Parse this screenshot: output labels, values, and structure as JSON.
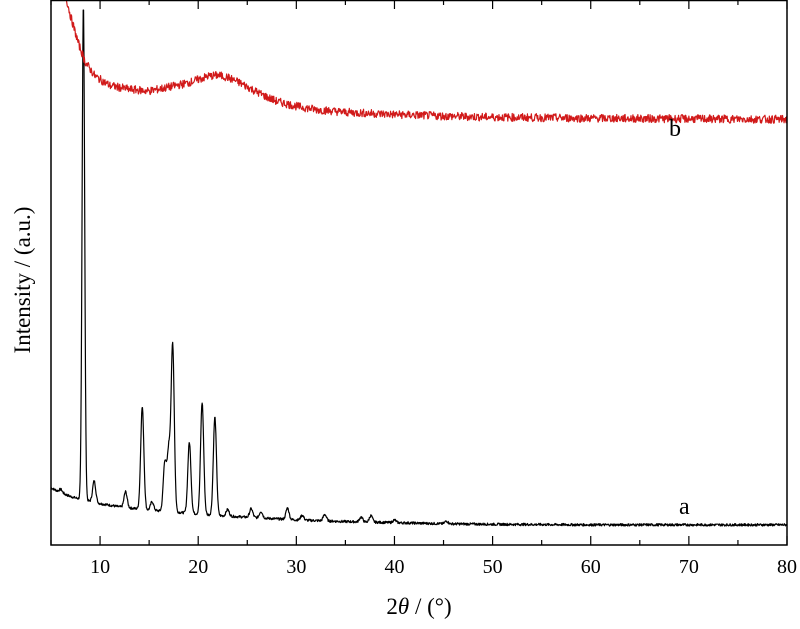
{
  "chart_data": {
    "type": "line",
    "title": "",
    "xlabel": {
      "prefix": "2",
      "italic": "θ",
      "suffix": " / (°)"
    },
    "ylabel": "Intensity / (a.u.)",
    "xlim": [
      5,
      80
    ],
    "ylim": [
      0,
      100
    ],
    "xticks": [
      10,
      20,
      30,
      40,
      50,
      60,
      70,
      80
    ],
    "xtick_labels": [
      "10",
      "20",
      "30",
      "40",
      "50",
      "60",
      "70",
      "80"
    ],
    "grid": false,
    "legend": "none",
    "y_tick_labels_shown": false,
    "series": [
      {
        "name": "a",
        "color": "#000000",
        "baseline": [
          [
            5,
            10.5
          ],
          [
            6,
            9.6
          ],
          [
            7,
            8.9
          ],
          [
            8,
            8.4
          ],
          [
            9,
            8.0
          ],
          [
            10,
            7.6
          ],
          [
            11,
            7.3
          ],
          [
            12,
            7.0
          ],
          [
            13,
            6.8
          ],
          [
            15,
            6.4
          ],
          [
            18,
            6.0
          ],
          [
            20,
            5.7
          ],
          [
            22,
            5.4
          ],
          [
            25,
            5.1
          ],
          [
            30,
            4.6
          ],
          [
            35,
            4.3
          ],
          [
            40,
            4.1
          ],
          [
            45,
            3.9
          ],
          [
            50,
            3.8
          ],
          [
            60,
            3.7
          ],
          [
            70,
            3.7
          ],
          [
            80,
            3.7
          ]
        ],
        "peaks": [
          {
            "x": 6.0,
            "h": 0.6
          },
          {
            "x": 8.3,
            "h": 91.0
          },
          {
            "x": 9.4,
            "h": 3.9
          },
          {
            "x": 12.6,
            "h": 2.9
          },
          {
            "x": 14.3,
            "h": 18.8
          },
          {
            "x": 15.3,
            "h": 1.6
          },
          {
            "x": 16.6,
            "h": 9.0
          },
          {
            "x": 17.0,
            "h": 11.0
          },
          {
            "x": 17.4,
            "h": 30.6
          },
          {
            "x": 19.1,
            "h": 13.0
          },
          {
            "x": 20.4,
            "h": 20.5
          },
          {
            "x": 21.7,
            "h": 18.0
          },
          {
            "x": 23.0,
            "h": 1.2
          },
          {
            "x": 25.4,
            "h": 1.6
          },
          {
            "x": 26.4,
            "h": 1.2
          },
          {
            "x": 29.1,
            "h": 2.1
          },
          {
            "x": 30.6,
            "h": 0.9
          },
          {
            "x": 32.9,
            "h": 1.2
          },
          {
            "x": 36.6,
            "h": 0.9
          },
          {
            "x": 37.6,
            "h": 1.2
          },
          {
            "x": 40.0,
            "h": 0.5
          },
          {
            "x": 45.3,
            "h": 0.5
          }
        ]
      },
      {
        "name": "b",
        "color": "#d11a1a",
        "curve": [
          [
            5.5,
            112
          ],
          [
            6.2,
            103
          ],
          [
            7.0,
            97
          ],
          [
            7.8,
            92
          ],
          [
            8.5,
            88.6
          ],
          [
            9.5,
            86.0
          ],
          [
            11,
            84.3
          ],
          [
            13,
            83.6
          ],
          [
            15,
            83.3
          ],
          [
            17,
            84.0
          ],
          [
            19,
            84.8
          ],
          [
            20,
            85.4
          ],
          [
            21,
            86.0
          ],
          [
            22,
            86.2
          ],
          [
            23,
            85.8
          ],
          [
            24,
            85.0
          ],
          [
            25,
            84.1
          ],
          [
            26,
            83.1
          ],
          [
            27,
            82.2
          ],
          [
            28,
            81.4
          ],
          [
            30,
            80.5
          ],
          [
            32,
            79.9
          ],
          [
            35,
            79.4
          ],
          [
            40,
            79.0
          ],
          [
            45,
            78.7
          ],
          [
            50,
            78.5
          ],
          [
            60,
            78.3
          ],
          [
            70,
            78.2
          ],
          [
            80,
            78.1
          ]
        ]
      }
    ]
  }
}
